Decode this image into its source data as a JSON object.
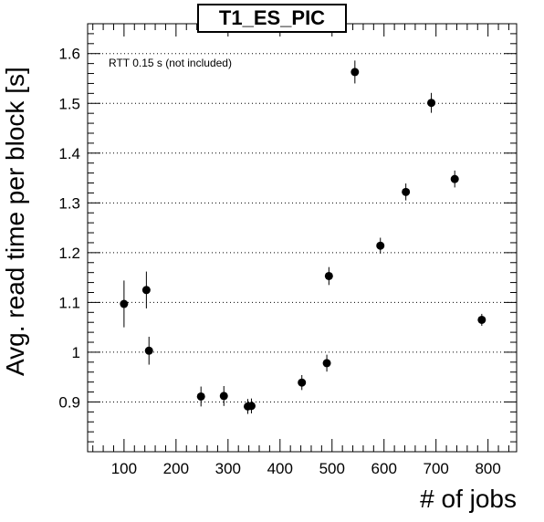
{
  "chart_data": {
    "type": "scatter",
    "title": "T1_ES_PIC",
    "annotation": "RTT 0.15 s (not included)",
    "xlabel": "# of jobs",
    "ylabel": "Avg. read time per block [s]",
    "xlim": [
      30,
      855
    ],
    "ylim": [
      0.8,
      1.66
    ],
    "xticks": [
      100,
      200,
      300,
      400,
      500,
      600,
      700,
      800
    ],
    "xtick_labels": [
      "100",
      "200",
      "300",
      "400",
      "500",
      "600",
      "700",
      "800"
    ],
    "yticks": [
      0.9,
      1.0,
      1.1,
      1.2,
      1.3,
      1.4,
      1.5,
      1.6
    ],
    "ytick_labels": [
      "0.9",
      "1",
      "1.1",
      "1.2",
      "1.3",
      "1.4",
      "1.5",
      "1.6"
    ],
    "grid": "horizontal dotted",
    "error_bars": true,
    "series": [
      {
        "color": "#000000",
        "points": [
          {
            "x": 100,
            "y": 1.097,
            "err": 0.047
          },
          {
            "x": 143,
            "y": 1.125,
            "err": 0.037
          },
          {
            "x": 148,
            "y": 1.003,
            "err": 0.028
          },
          {
            "x": 248,
            "y": 0.911,
            "err": 0.02
          },
          {
            "x": 292,
            "y": 0.912,
            "err": 0.02
          },
          {
            "x": 338,
            "y": 0.891,
            "err": 0.015
          },
          {
            "x": 345,
            "y": 0.892,
            "err": 0.015
          },
          {
            "x": 442,
            "y": 0.939,
            "err": 0.015
          },
          {
            "x": 490,
            "y": 0.978,
            "err": 0.017
          },
          {
            "x": 494,
            "y": 1.153,
            "err": 0.018
          },
          {
            "x": 544,
            "y": 1.563,
            "err": 0.023
          },
          {
            "x": 593,
            "y": 1.214,
            "err": 0.016
          },
          {
            "x": 642,
            "y": 1.322,
            "err": 0.017
          },
          {
            "x": 691,
            "y": 1.501,
            "err": 0.02
          },
          {
            "x": 736,
            "y": 1.348,
            "err": 0.017
          },
          {
            "x": 788,
            "y": 1.065,
            "err": 0.012
          }
        ]
      }
    ]
  }
}
